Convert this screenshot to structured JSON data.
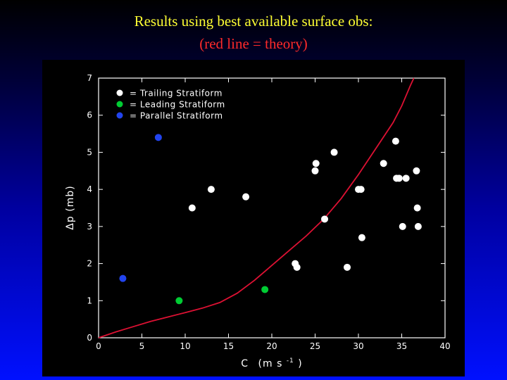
{
  "header": {
    "title": "Results using best available surface obs:",
    "subtitle": "(red line = theory)"
  },
  "colors": {
    "title": "#ffff33",
    "subtitle": "#ff2a2a",
    "trailing": "#ffffff",
    "leading": "#00cc33",
    "parallel": "#2244ee",
    "theory": "#dd1133"
  },
  "chart_data": {
    "type": "scatter",
    "xlabel_main": "C",
    "xlabel_units": "(m s",
    "xlabel_sup": "-1",
    "xlabel_close": ")",
    "ylabel": "Δp (mb)",
    "xlim": [
      0,
      40
    ],
    "ylim": [
      0,
      7
    ],
    "xticks": [
      "0",
      "5",
      "10",
      "15",
      "20",
      "25",
      "30",
      "35",
      "40"
    ],
    "yticks": [
      "0",
      "1",
      "2",
      "3",
      "4",
      "5",
      "6",
      "7"
    ],
    "legend_position": "top-left",
    "series": [
      {
        "name": "= Trailing Stratiform",
        "color_key": "trailing",
        "points": [
          [
            10.8,
            3.5
          ],
          [
            13.0,
            4.0
          ],
          [
            17.0,
            3.8
          ],
          [
            22.7,
            2.0
          ],
          [
            22.9,
            1.9
          ],
          [
            25.0,
            4.5
          ],
          [
            25.1,
            4.7
          ],
          [
            26.1,
            3.2
          ],
          [
            27.2,
            5.0
          ],
          [
            28.7,
            1.9
          ],
          [
            30.0,
            4.0
          ],
          [
            30.3,
            4.0
          ],
          [
            30.4,
            2.7
          ],
          [
            32.9,
            4.7
          ],
          [
            34.3,
            5.3
          ],
          [
            34.4,
            4.3
          ],
          [
            34.7,
            4.3
          ],
          [
            35.1,
            3.0
          ],
          [
            35.5,
            4.3
          ],
          [
            36.7,
            4.5
          ],
          [
            36.8,
            3.5
          ],
          [
            36.9,
            3.0
          ]
        ]
      },
      {
        "name": "= Leading Stratiform",
        "color_key": "leading",
        "points": [
          [
            9.3,
            1.0
          ],
          [
            19.2,
            1.3
          ]
        ]
      },
      {
        "name": "= Parallel Stratiform",
        "color_key": "parallel",
        "points": [
          [
            2.8,
            1.6
          ],
          [
            6.9,
            5.4
          ]
        ]
      }
    ],
    "theory_curve": [
      [
        0,
        0
      ],
      [
        2,
        0.16
      ],
      [
        4,
        0.3
      ],
      [
        6,
        0.44
      ],
      [
        8,
        0.56
      ],
      [
        10,
        0.68
      ],
      [
        12,
        0.8
      ],
      [
        14,
        0.95
      ],
      [
        16,
        1.2
      ],
      [
        18,
        1.55
      ],
      [
        20,
        1.95
      ],
      [
        22,
        2.35
      ],
      [
        24,
        2.75
      ],
      [
        26,
        3.2
      ],
      [
        28,
        3.75
      ],
      [
        30,
        4.4
      ],
      [
        32,
        5.1
      ],
      [
        34,
        5.8
      ],
      [
        35,
        6.25
      ],
      [
        36,
        6.8
      ],
      [
        36.4,
        7.0
      ]
    ]
  }
}
